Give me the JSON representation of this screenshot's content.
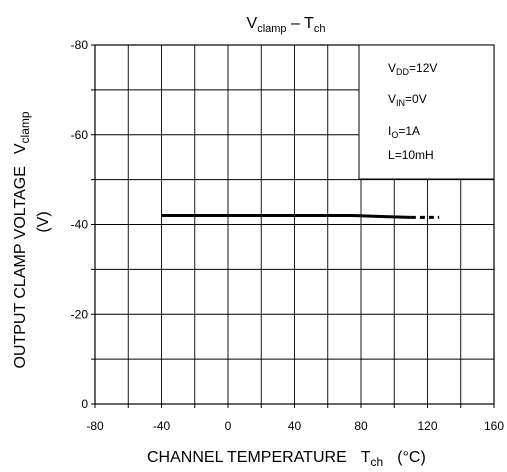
{
  "chart_data": {
    "type": "line",
    "title": {
      "main": "V",
      "sub": "clamp",
      "sep": " – ",
      "main2": "T",
      "sub2": "ch"
    },
    "xlabel": {
      "text": "CHANNEL TEMPERATURE",
      "sym": "T",
      "sub": "ch",
      "unit": "(°C)"
    },
    "ylabel": {
      "line1": "OUTPUT CLAMP VOLTAGE",
      "sym": "V",
      "sub": "clamp",
      "line2": "(V)"
    },
    "xlim": [
      -80,
      160
    ],
    "ylim": [
      0,
      -80
    ],
    "x_ticks": [
      -80,
      -40,
      0,
      40,
      80,
      120,
      160
    ],
    "x_tick_labels": [
      "-80",
      "-40",
      "0",
      "40",
      "80",
      "120",
      "160"
    ],
    "y_ticks": [
      0,
      -20,
      -40,
      -60,
      -80
    ],
    "y_tick_labels": [
      "0",
      "-20",
      "-40",
      "-60",
      "-80"
    ],
    "x_minor_step": 20,
    "y_minor_step": 10,
    "grid": true,
    "conditions": [
      {
        "sym": "V",
        "sub": "DD",
        "val": "=12V"
      },
      {
        "sym": "V",
        "sub": "IN",
        "val": "=0V"
      },
      {
        "sym": "I",
        "sub": "O",
        "val": "=1A"
      },
      {
        "sym": "L",
        "sub": "",
        "val": "=10mH"
      }
    ],
    "series": [
      {
        "style": "solid",
        "x": [
          -40,
          0,
          40,
          75,
          90,
          110
        ],
        "y": [
          -42,
          -42,
          -42,
          -42,
          -41.8,
          -41.6
        ]
      },
      {
        "style": "dashed",
        "x": [
          110,
          127
        ],
        "y": [
          -41.6,
          -41.6
        ]
      }
    ]
  }
}
